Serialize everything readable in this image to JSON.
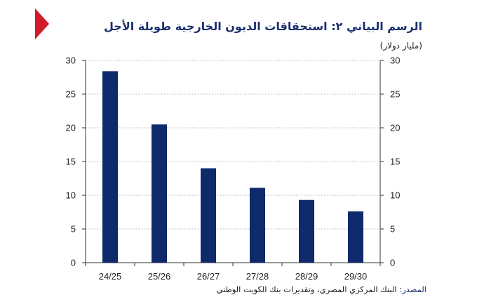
{
  "header": {
    "title": "الرسم البياني ٢: استحقاقات الديون الخارجية طويلة الأجل",
    "unit": "(مليار دولار)"
  },
  "footer": {
    "source_label": "المصدر:",
    "source_text": "البنك المركزي المصري، وتقديرات بنك الكويت الوطني"
  },
  "colors": {
    "bar": "#0f2a6b",
    "accent": "#d11a2a",
    "title": "#1b2f6e"
  },
  "chart_data": {
    "type": "bar",
    "title": "الرسم البياني ٢: استحقاقات الديون الخارجية طويلة الأجل",
    "ylabel": "(مليار دولار)",
    "xlabel": "",
    "categories": [
      "24/25",
      "25/26",
      "26/27",
      "27/28",
      "28/29",
      "29/30"
    ],
    "values": [
      28.4,
      20.5,
      14.0,
      11.1,
      9.3,
      7.6
    ],
    "ylim": [
      0,
      30
    ],
    "yticks": [
      0,
      5,
      10,
      15,
      20,
      25,
      30
    ],
    "dual_y_axis": true,
    "grid": "horizontal-dotted",
    "legend": "none"
  }
}
